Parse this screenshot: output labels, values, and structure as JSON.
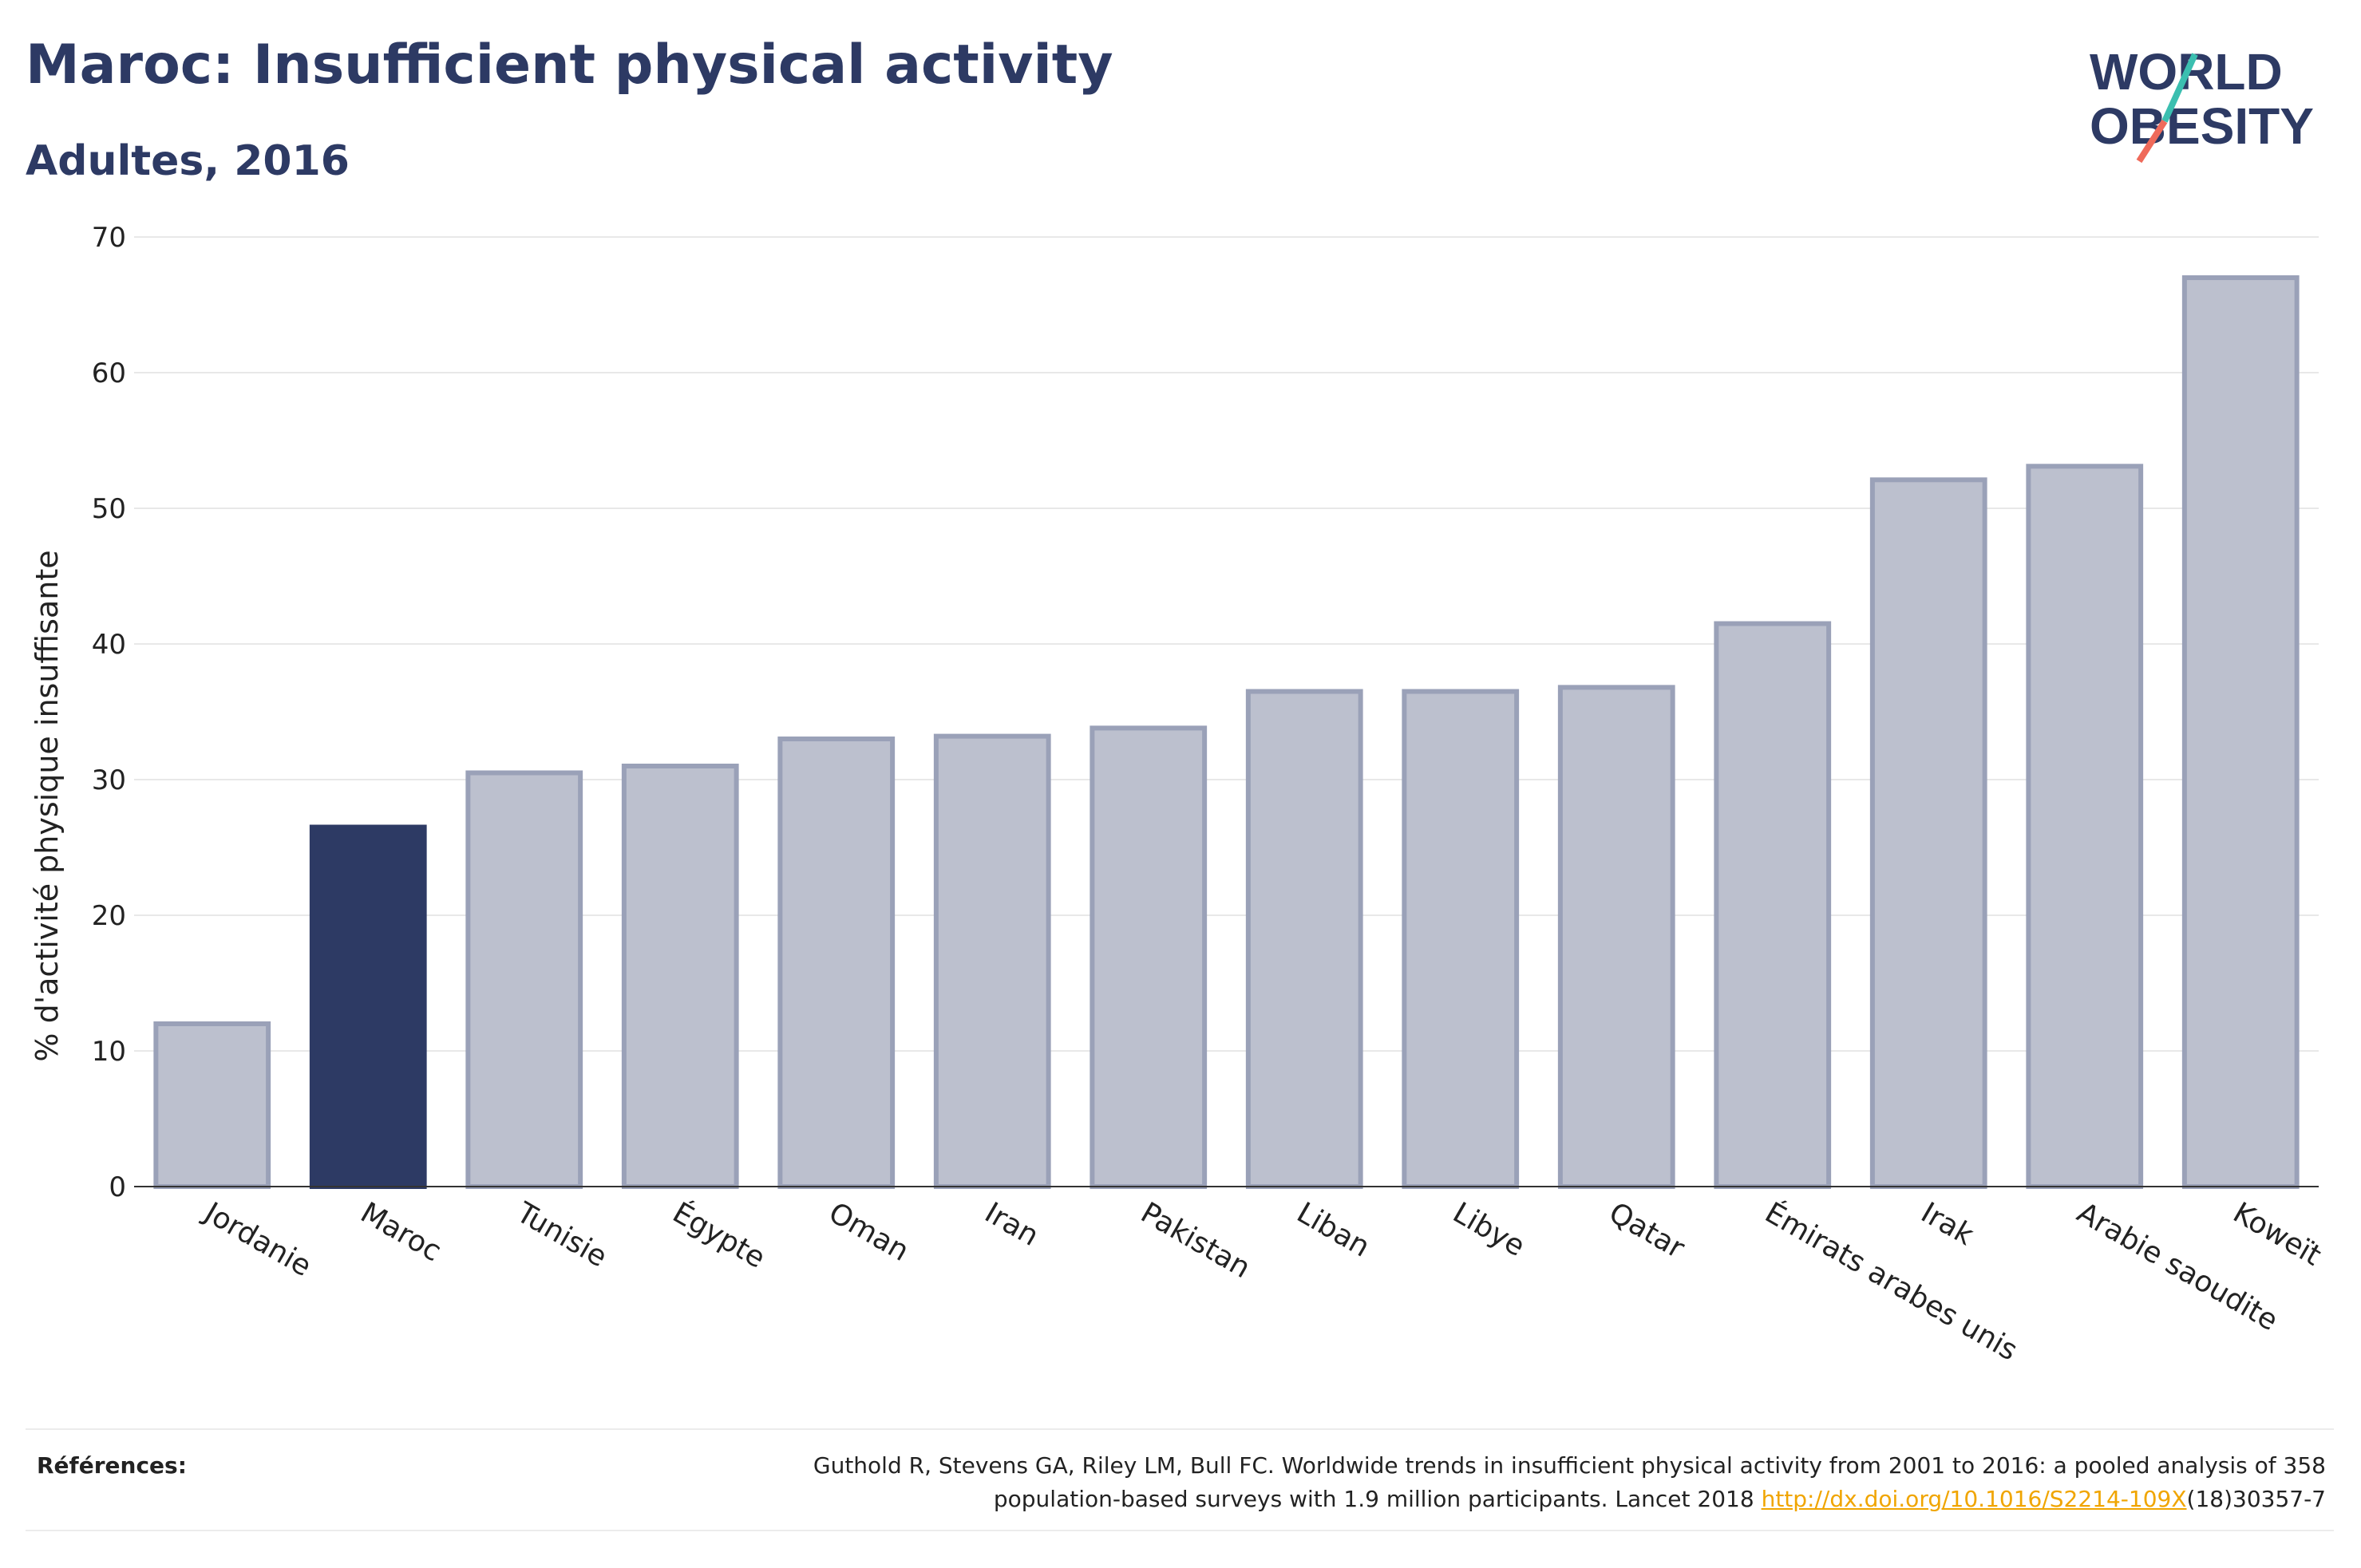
{
  "header": {
    "title": "Maroc: Insufficient physical activity",
    "subtitle": "Adultes, 2016"
  },
  "logo": {
    "line1": "WORLD",
    "line2": "OBESITY"
  },
  "colors": {
    "highlight": "#2d3a64",
    "bar": "#bcc0ce",
    "bar_stroke": "#9aa1b8",
    "text": "#2d3a64"
  },
  "chart_data": {
    "type": "bar",
    "categories": [
      "Jordanie",
      "Maroc",
      "Tunisie",
      "Égypte",
      "Oman",
      "Iran",
      "Pakistan",
      "Liban",
      "Libye",
      "Qatar",
      "Émirats arabes unis",
      "Irak",
      "Arabie saoudite",
      "Koweït"
    ],
    "values": [
      12,
      26.5,
      30.5,
      31,
      33,
      33.2,
      33.8,
      36.5,
      36.5,
      36.8,
      41.5,
      52.1,
      53.1,
      67
    ],
    "highlight": "Maroc",
    "ylabel": "% d'activité physique insuffisante",
    "ylim": [
      0,
      70
    ],
    "yticks": [
      0,
      10,
      20,
      30,
      40,
      50,
      60,
      70
    ],
    "grid": true
  },
  "references": {
    "label": "Références:",
    "text_line1": "Guthold R, Stevens GA, Riley LM, Bull FC. Worldwide trends in insufficient physical activity from 2001 to 2016: a pooled analysis of 358",
    "text_line2": "population-based surveys with 1.9 million participants. Lancet 2018 ",
    "link": "http://dx.doi.org/10.1016/S2214-109X",
    "text_after": "(18)30357-7"
  }
}
